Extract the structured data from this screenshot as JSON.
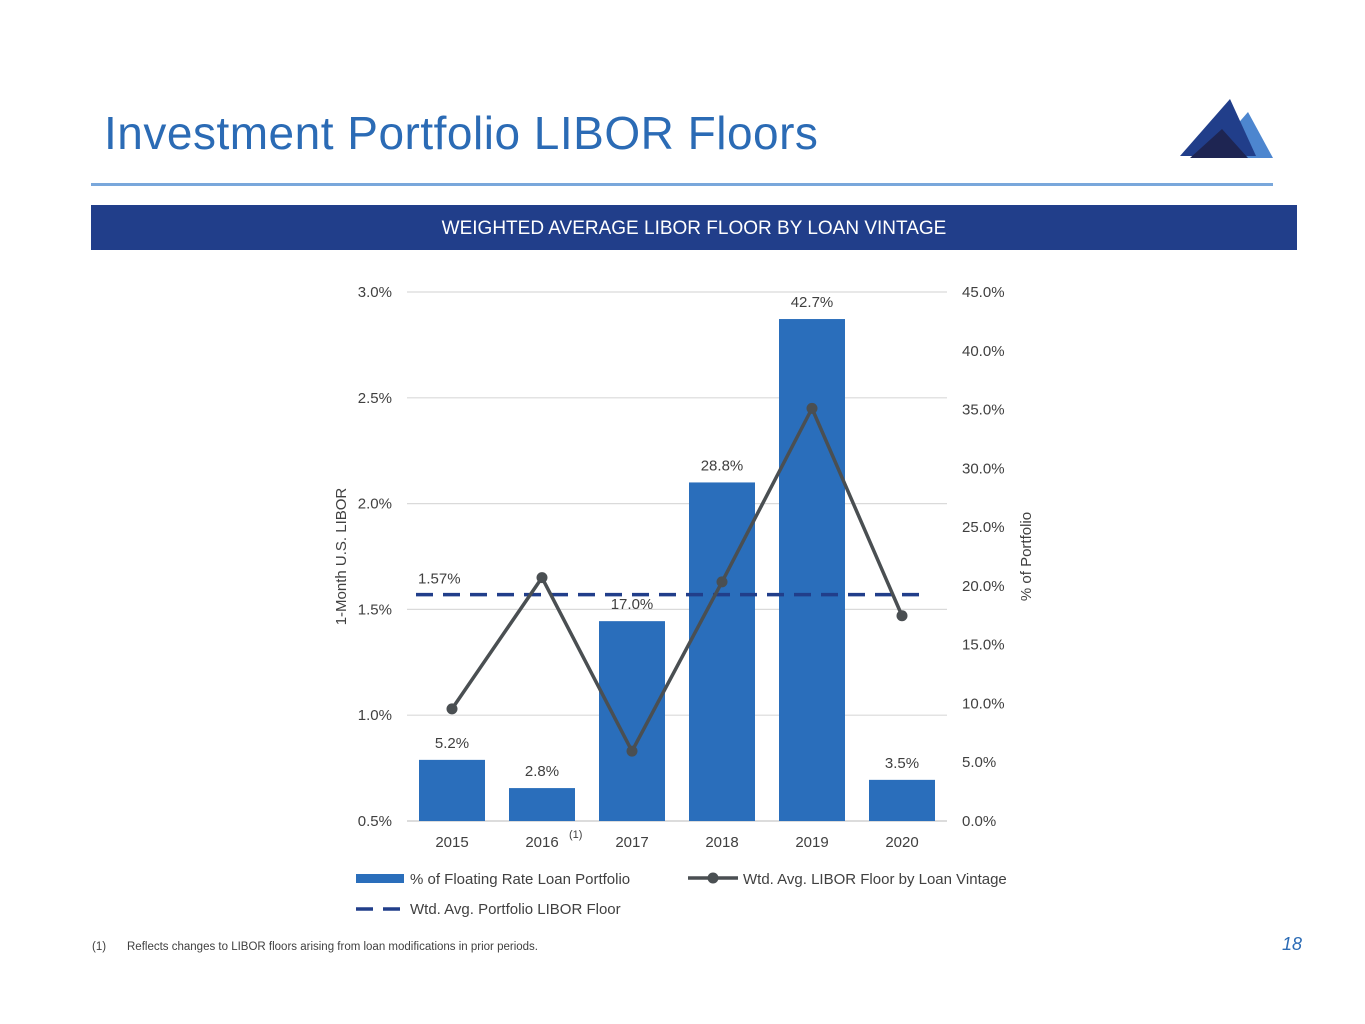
{
  "header": {
    "title": "Investment Portfolio LIBOR Floors",
    "banner": "WEIGHTED AVERAGE LIBOR FLOOR BY LOAN VINTAGE"
  },
  "colors": {
    "brand_blue": "#2b6bb5",
    "banner_navy": "#213e8a",
    "bar_blue": "#2a6ebb",
    "line_gray": "#4a4f52",
    "dash_navy": "#213e8a",
    "logo_dark": "#1e2552",
    "logo_mid": "#213e8a",
    "logo_light": "#4d86cf"
  },
  "chart_data": {
    "type": "bar",
    "categories": [
      "2015",
      "2016",
      "2017",
      "2018",
      "2019",
      "2020"
    ],
    "category_superscripts": [
      "",
      "(1)",
      "",
      "",
      "",
      ""
    ],
    "series": [
      {
        "name": "% of Floating Rate Loan Portfolio",
        "type": "bar",
        "axis": "right",
        "values": [
          5.2,
          2.8,
          17.0,
          28.8,
          42.7,
          3.5
        ],
        "data_labels": [
          "5.2%",
          "2.8%",
          "17.0%",
          "28.8%",
          "42.7%",
          "3.5%"
        ]
      },
      {
        "name": "Wtd. Avg. LIBOR Floor by Loan Vintage",
        "type": "line",
        "axis": "left",
        "values": [
          1.03,
          1.65,
          0.83,
          1.63,
          2.45,
          1.47
        ]
      },
      {
        "name": "Wtd. Avg. Portfolio LIBOR Floor",
        "type": "dashed-line",
        "axis": "left",
        "value": 1.57,
        "data_label": "1.57%"
      }
    ],
    "left_axis": {
      "label": "1-Month U.S. LIBOR",
      "range": [
        0.5,
        3.0
      ],
      "ticks": [
        "0.5%",
        "1.0%",
        "1.5%",
        "2.0%",
        "2.5%",
        "3.0%"
      ]
    },
    "right_axis": {
      "label": "% of Portfolio",
      "range": [
        0,
        45
      ],
      "ticks": [
        "0.0%",
        "5.0%",
        "10.0%",
        "15.0%",
        "20.0%",
        "25.0%",
        "30.0%",
        "35.0%",
        "40.0%",
        "45.0%"
      ]
    },
    "grid": true,
    "legend_position": "bottom"
  },
  "footnote": {
    "mark": "(1)",
    "text": "Reflects changes to LIBOR floors arising from loan modifications in prior periods."
  },
  "page_number": "18"
}
